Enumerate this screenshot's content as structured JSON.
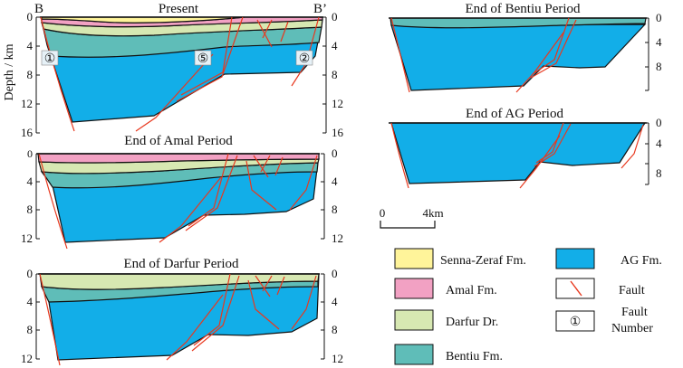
{
  "colors": {
    "senna_zeraf": "#fff49a",
    "amal": "#f2a1c3",
    "darfur": "#d7e8b2",
    "bentiu": "#5fbdb8",
    "ag": "#12aee8",
    "fault": "#e8381e",
    "outline": "#111111"
  },
  "sections": {
    "present": {
      "title": "Present",
      "left_label": "B",
      "right_label": "B’",
      "y_axis_title": "Depth / km",
      "left_ticks": [
        "0",
        "4",
        "8",
        "12",
        "16"
      ],
      "right_ticks": [
        "0",
        "4",
        "8",
        "12",
        "16"
      ],
      "fault_numbers": [
        "①",
        "⑤",
        "②"
      ]
    },
    "amal": {
      "title": "End of Amal Period",
      "left_ticks": [
        "0",
        "4",
        "8",
        "12"
      ],
      "right_ticks": [
        "0",
        "4",
        "8",
        "12"
      ]
    },
    "darfur": {
      "title": "End of Darfur Period",
      "left_ticks": [
        "0",
        "4",
        "8",
        "12"
      ],
      "right_ticks": [
        "0",
        "4",
        "8",
        "12"
      ]
    },
    "bentiu": {
      "title": "End of Bentiu Period",
      "right_ticks": [
        "0",
        "4",
        "8"
      ]
    },
    "ag": {
      "title": "End of AG Period",
      "right_ticks": [
        "0",
        "4",
        "8"
      ]
    }
  },
  "scale_bar": {
    "left": "0",
    "right": "4km"
  },
  "legend": {
    "senna_zeraf": "Senna-Zeraf Fm.",
    "amal": "Amal Fm.",
    "darfur": "Darfur Dr.",
    "bentiu": "Bentiu Fm.",
    "ag": "AG Fm.",
    "fault": "Fault",
    "fault_number_symbol": "①",
    "fault_number_line1": "Fault",
    "fault_number_line2": "Number"
  }
}
